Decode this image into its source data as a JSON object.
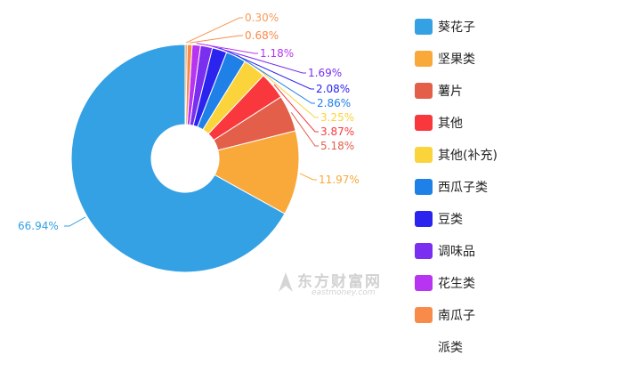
{
  "chart_data": {
    "type": "pie",
    "variant": "donut",
    "title": "",
    "legend_position": "right",
    "slices": [
      {
        "label": "葵花子",
        "value": 66.94,
        "display": "66.94%",
        "color": "#34a1e4"
      },
      {
        "label": "坚果类",
        "value": 11.97,
        "display": "11.97%",
        "color": "#f8a93a"
      },
      {
        "label": "薯片",
        "value": 5.18,
        "display": "5.18%",
        "color": "#e35f4a"
      },
      {
        "label": "其他",
        "value": 3.87,
        "display": "3.87%",
        "color": "#f8383d"
      },
      {
        "label": "其他(补充)",
        "value": 3.25,
        "display": "3.25%",
        "color": "#fbd33a"
      },
      {
        "label": "西瓜子类",
        "value": 2.86,
        "display": "2.86%",
        "color": "#1f80e8"
      },
      {
        "label": "豆类",
        "value": 2.08,
        "display": "2.08%",
        "color": "#2a24ee"
      },
      {
        "label": "调味品",
        "value": 1.69,
        "display": "1.69%",
        "color": "#7a2ef0"
      },
      {
        "label": "花生类",
        "value": 1.18,
        "display": "1.18%",
        "color": "#b734f2"
      },
      {
        "label": "南瓜子",
        "value": 0.68,
        "display": "0.68%",
        "color": "#f88b4a"
      },
      {
        "label": "派类",
        "value": 0.3,
        "display": "0.30%",
        "color": "#f79b5a"
      }
    ]
  },
  "legend": {
    "items": [
      {
        "label": "葵花子",
        "color": "#34a1e4"
      },
      {
        "label": "坚果类",
        "color": "#f8a93a"
      },
      {
        "label": "薯片",
        "color": "#e35f4a"
      },
      {
        "label": "其他",
        "color": "#f8383d"
      },
      {
        "label": "其他(补充)",
        "color": "#fbd33a"
      },
      {
        "label": "西瓜子类",
        "color": "#1f80e8"
      },
      {
        "label": "豆类",
        "color": "#2a24ee"
      },
      {
        "label": "调味品",
        "color": "#7a2ef0"
      },
      {
        "label": "花生类",
        "color": "#b734f2"
      },
      {
        "label": "南瓜子",
        "color": "#f88b4a"
      },
      {
        "label": "派类",
        "color": ""
      }
    ]
  },
  "watermark": {
    "title": "东方财富网",
    "subtitle": "eastmoney.com"
  }
}
